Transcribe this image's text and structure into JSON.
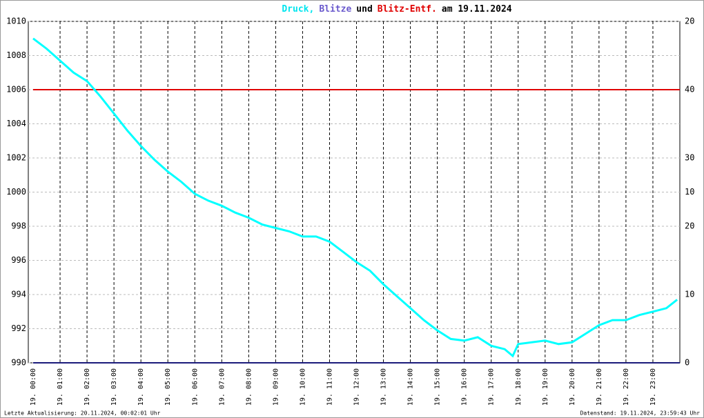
{
  "chart_data": {
    "type": "line",
    "title": [
      {
        "text": "Druck,",
        "color": "#00e5ee"
      },
      {
        "text": "Blitze",
        "color": "#6a5acd"
      },
      {
        "text": "und",
        "color": "#000000"
      },
      {
        "text": "Blitz-Entf.",
        "color": "#e00000"
      },
      {
        "text": "am 19.11.2024",
        "color": "#000000"
      }
    ],
    "footer_left": "Letzte Aktualisierung: 20.11.2024, 00:02:01 Uhr",
    "footer_right": "Datenstand: 19.11.2024, 23:59:43 Uhr",
    "xlim": [
      0,
      24
    ],
    "xticks": [
      {
        "value": 0,
        "label": "19. 00:00"
      },
      {
        "value": 1,
        "label": "19. 01:00"
      },
      {
        "value": 2,
        "label": "19. 02:00"
      },
      {
        "value": 3,
        "label": "19. 03:00"
      },
      {
        "value": 4,
        "label": "19. 04:00"
      },
      {
        "value": 5,
        "label": "19. 05:00"
      },
      {
        "value": 6,
        "label": "19. 06:00"
      },
      {
        "value": 7,
        "label": "19. 07:00"
      },
      {
        "value": 8,
        "label": "19. 08:00"
      },
      {
        "value": 9,
        "label": "19. 09:00"
      },
      {
        "value": 10,
        "label": "19. 10:00"
      },
      {
        "value": 11,
        "label": "19. 11:00"
      },
      {
        "value": 12,
        "label": "19. 12:00"
      },
      {
        "value": 13,
        "label": "19. 13:00"
      },
      {
        "value": 14,
        "label": "19. 14:00"
      },
      {
        "value": 15,
        "label": "19. 15:00"
      },
      {
        "value": 16,
        "label": "19. 16:00"
      },
      {
        "value": 17,
        "label": "19. 17:00"
      },
      {
        "value": 18,
        "label": "19. 18:00"
      },
      {
        "value": 19,
        "label": "19. 19:00"
      },
      {
        "value": 20,
        "label": "19. 20:00"
      },
      {
        "value": 21,
        "label": "19. 21:00"
      },
      {
        "value": 22,
        "label": "19. 22:00"
      },
      {
        "value": 23,
        "label": "19. 23:00"
      }
    ],
    "ylim": [
      990,
      1010
    ],
    "yticks": [
      990,
      992,
      994,
      996,
      998,
      1000,
      1002,
      1004,
      1006,
      1008,
      1010
    ],
    "y2lim": [
      0,
      50
    ],
    "y2ticks": [
      10,
      20,
      30,
      40
    ],
    "y2color": "#e00000",
    "y3lim": [
      0,
      20
    ],
    "y3ticks": [
      0,
      10,
      20
    ],
    "y3color": "#000000",
    "grid": true,
    "series": [
      {
        "name": "Druck",
        "color": "#00ffff",
        "axis": "y",
        "x": [
          0,
          0.5,
          1,
          1.5,
          2,
          2.5,
          3,
          3.5,
          4,
          4.5,
          5,
          5.5,
          6,
          6.5,
          7,
          7.5,
          8,
          8.5,
          9,
          9.5,
          10,
          10.5,
          11,
          11.5,
          12,
          12.5,
          13,
          13.5,
          14,
          14.5,
          15,
          15.5,
          16,
          16.5,
          17,
          17.5,
          17.8,
          18,
          18.5,
          19,
          19.5,
          20,
          20.5,
          21,
          21.5,
          22,
          22.5,
          23,
          23.5,
          23.9
        ],
        "values": [
          1009.0,
          1008.4,
          1007.7,
          1007.0,
          1006.5,
          1005.6,
          1004.6,
          1003.6,
          1002.7,
          1001.9,
          1001.2,
          1000.6,
          999.9,
          999.5,
          999.2,
          998.8,
          998.5,
          998.1,
          997.9,
          997.7,
          997.4,
          997.4,
          997.1,
          996.5,
          995.9,
          995.4,
          994.6,
          993.9,
          993.2,
          992.5,
          991.9,
          991.4,
          991.3,
          991.5,
          991.0,
          990.8,
          990.4,
          991.1,
          991.2,
          991.3,
          991.1,
          991.2,
          991.7,
          992.2,
          992.5,
          992.5,
          992.8,
          993.0,
          993.2,
          993.7
        ]
      },
      {
        "name": "Blitz-Entf.",
        "color": "#e00000",
        "axis": "y2",
        "x": [
          0,
          24
        ],
        "values": [
          40,
          40
        ]
      },
      {
        "name": "Blitze",
        "color": "#1a1a7a",
        "axis": "y3",
        "x": [
          0,
          24
        ],
        "values": [
          0,
          0
        ]
      }
    ]
  }
}
